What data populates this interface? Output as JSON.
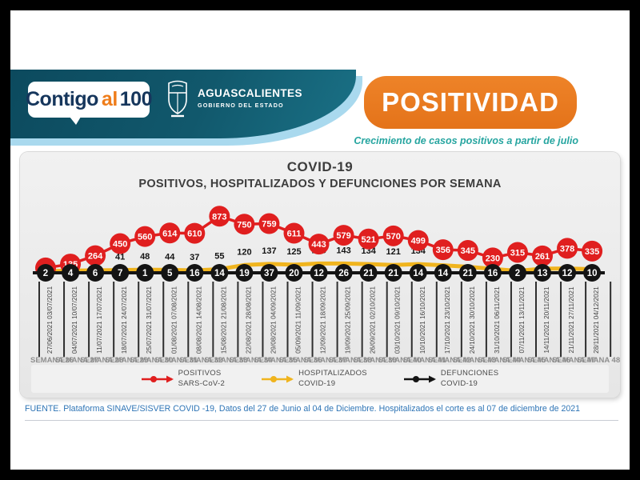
{
  "header": {
    "brand": {
      "part1": "Contigo",
      "part2": "al",
      "part3": "100"
    },
    "government": {
      "name": "AGUASCALIENTES",
      "subtitle": "GOBIERNO DEL ESTADO"
    },
    "banner_title": "POSITIVIDAD",
    "banner_subtitle": "Crecimiento de casos positivos a partir de julio"
  },
  "chart": {
    "title": "COVID-19",
    "subtitle": "POSITIVOS, HOSPITALIZADOS Y DEFUNCIONES POR SEMANA"
  },
  "chart_data": {
    "type": "line",
    "title": "COVID-19",
    "subtitle": "POSITIVOS, HOSPITALIZADOS Y DEFUNCIONES POR SEMANA",
    "categories": [
      "27/06/2021 03/07/2021",
      "04/07/2021 10/07/2021",
      "11/07/2021 17/07/2021",
      "18/07/2021 24/07/2021",
      "25/07/2021 31/07/2021",
      "01/08/2021 07/08/2021",
      "08/08/2021 14/08/2021",
      "15/08/2021 21/08/2021",
      "22/08/2021 28/08/2021",
      "29/08/2021 04/09/2021",
      "05/09/2021 11/09/2021",
      "12/09/2021 18/09/2021",
      "19/09/2021 25/09/2021",
      "26/09/2021 02/10/2021",
      "03/10/2021 09/10/2021",
      "10/10/2021 16/10/2021",
      "17/10/2021 23/10/2021",
      "24/10/2021 30/10/2021",
      "31/10/2021 06/11/2021",
      "07/11/2021 13/11/2021",
      "14/11/2021 20/11/2021",
      "21/11/2021 27/11/2021",
      "28/11/2021 04/12/2021"
    ],
    "week_labels": [
      "SEMANA 26",
      "SEMANA 27",
      "SEMANA 28",
      "SEMANA 29",
      "SEMANA 30",
      "SEMANA 31",
      "SEMANA 32",
      "SEMANA 33",
      "SEMANA 34",
      "SEMANA 35",
      "SEMANA 36",
      "SEMANA 37",
      "SEMANA 38",
      "SEMANA 39",
      "SEMANA 40",
      "SEMANA 41",
      "SEMANA 42",
      "SEMANA 43",
      "SEMANA 44",
      "SEMANA 45",
      "SEMANA 46",
      "SEMANA 47",
      "SEMANA 48"
    ],
    "series": [
      {
        "name": "POSITIVOS SARS-CoV-2",
        "color": "#e01f1f",
        "values": [
          75,
          135,
          264,
          450,
          560,
          614,
          610,
          873,
          750,
          759,
          611,
          443,
          579,
          521,
          570,
          499,
          356,
          345,
          230,
          315,
          261,
          378,
          335
        ]
      },
      {
        "name": "HOSPITALIZADOS COVID-19",
        "color": "#f0b41e",
        "values": [
          25,
          32,
          38,
          41,
          48,
          44,
          37,
          55,
          120,
          137,
          125,
          143,
          143,
          134,
          121,
          134,
          116,
          93,
          60,
          30,
          64,
          67,
          55
        ],
        "hidden_label_indices": [
          0,
          1,
          2
        ]
      },
      {
        "name": "DEFUNCIONES COVID-19",
        "color": "#141414",
        "values": [
          2,
          4,
          6,
          7,
          1,
          5,
          16,
          14,
          19,
          37,
          20,
          12,
          26,
          21,
          21,
          14,
          14,
          21,
          16,
          2,
          13,
          12,
          10
        ]
      }
    ],
    "ylim": [
      0,
      900
    ],
    "grid": "vertical drop lines per week",
    "legend_position": "bottom"
  },
  "legend": {
    "items": [
      {
        "line1": "POSITIVOS",
        "line2": "SARS-CoV-2",
        "color": "#e01f1f"
      },
      {
        "line1": "HOSPITALIZADOS",
        "line2": "COVID-19",
        "color": "#f0b41e"
      },
      {
        "line1": "DEFUNCIONES",
        "line2": "COVID-19",
        "color": "#141414"
      }
    ]
  },
  "footer": {
    "source": "FUENTE. Plataforma SINAVE/SISVER COVID -19, Datos del 27 de Junio al 04 de Diciembre.  Hospitalizados el corte es al 07 de diciembre de 2021"
  }
}
